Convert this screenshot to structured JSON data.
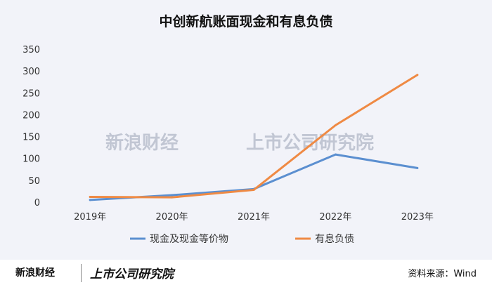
{
  "chart_data": {
    "type": "line",
    "title": "中创新航账面现金和有息负债",
    "categories": [
      "2019年",
      "2020年",
      "2021年",
      "2022年",
      "2023年"
    ],
    "series": [
      {
        "name": "现金及现金等价物",
        "values": [
          5,
          16,
          30,
          109,
          78
        ],
        "color": "#5b8fd0"
      },
      {
        "name": "有息负债",
        "values": [
          12,
          11,
          28,
          176,
          291
        ],
        "color": "#ef8a44"
      }
    ],
    "ylim": [
      0,
      350
    ],
    "yticks": [
      "0",
      "50",
      "100",
      "150",
      "200",
      "250",
      "300",
      "350"
    ],
    "grid": false,
    "legend_position": "bottom"
  },
  "watermark": {
    "brand": "新浪财经",
    "institute": "上市公司研究院"
  },
  "footer": {
    "brand": "新浪财经",
    "institute": "上市公司研究院",
    "source": "资料来源：Wind"
  }
}
